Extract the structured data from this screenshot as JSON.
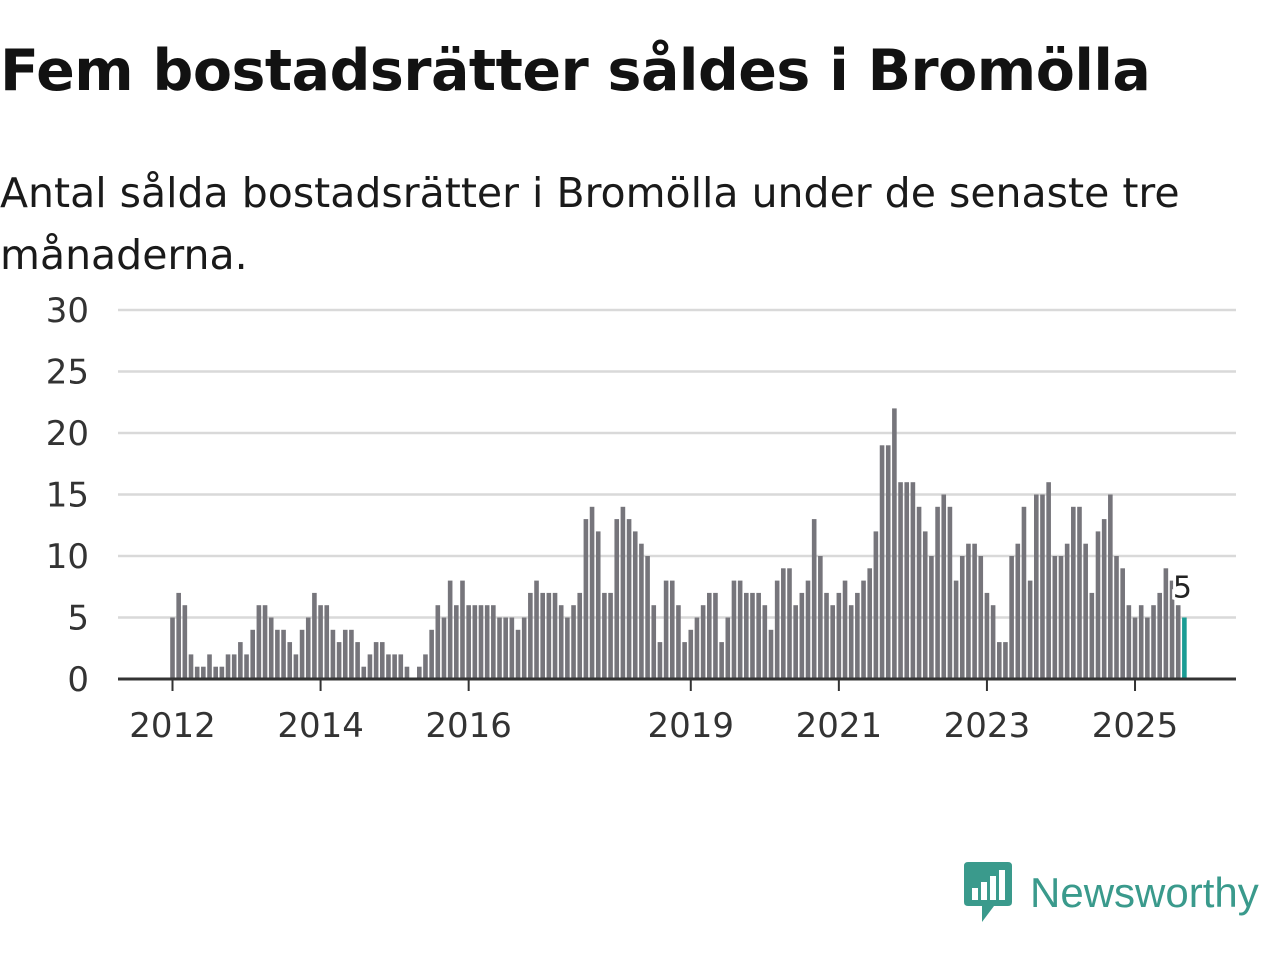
{
  "title": "Fem bostadsrätter såldes i Bromölla",
  "subtitle": "Antal sålda bostadsrätter i Bromölla under de senaste tre månaderna.",
  "brand": "Newsworthy",
  "colors": {
    "bar": "#76757b",
    "highlight": "#1a9c94",
    "grid": "#d9d9d9",
    "axis": "#333333",
    "brand": "#3a9a8c"
  },
  "chart_data": {
    "type": "bar",
    "title": "Fem bostadsrätter såldes i Bromölla",
    "xlabel": "",
    "ylabel": "",
    "ylim": [
      0,
      30
    ],
    "y_ticks": [
      "0",
      "5",
      "10",
      "15",
      "20",
      "25",
      "30"
    ],
    "x_ticks": [
      {
        "label": "2012",
        "index": 0
      },
      {
        "label": "2014",
        "index": 24
      },
      {
        "label": "2016",
        "index": 48
      },
      {
        "label": "2019",
        "index": 84
      },
      {
        "label": "2021",
        "index": 108
      },
      {
        "label": "2023",
        "index": 132
      },
      {
        "label": "2025",
        "index": 156
      }
    ],
    "values": [
      5,
      7,
      6,
      2,
      1,
      1,
      2,
      1,
      1,
      2,
      2,
      3,
      2,
      4,
      6,
      6,
      5,
      4,
      4,
      3,
      2,
      4,
      5,
      7,
      6,
      6,
      4,
      3,
      4,
      4,
      3,
      1,
      2,
      3,
      3,
      2,
      2,
      2,
      1,
      0,
      1,
      2,
      4,
      6,
      5,
      8,
      6,
      8,
      6,
      6,
      6,
      6,
      6,
      5,
      5,
      5,
      4,
      5,
      7,
      8,
      7,
      7,
      7,
      6,
      5,
      6,
      7,
      13,
      14,
      12,
      7,
      7,
      13,
      14,
      13,
      12,
      11,
      10,
      6,
      3,
      8,
      8,
      6,
      3,
      4,
      5,
      6,
      7,
      7,
      3,
      5,
      8,
      8,
      7,
      7,
      7,
      6,
      4,
      8,
      9,
      9,
      6,
      7,
      8,
      13,
      10,
      7,
      6,
      7,
      8,
      6,
      7,
      8,
      9,
      12,
      19,
      19,
      22,
      16,
      16,
      16,
      14,
      12,
      10,
      14,
      15,
      14,
      8,
      10,
      11,
      11,
      10,
      7,
      6,
      3,
      3,
      10,
      11,
      14,
      8,
      15,
      15,
      16,
      10,
      10,
      11,
      14,
      14,
      11,
      7,
      12,
      13,
      15,
      10,
      9,
      6,
      5,
      6,
      5,
      6,
      7,
      9,
      8,
      6,
      5
    ],
    "highlight_index": 164,
    "annotation": "5"
  }
}
